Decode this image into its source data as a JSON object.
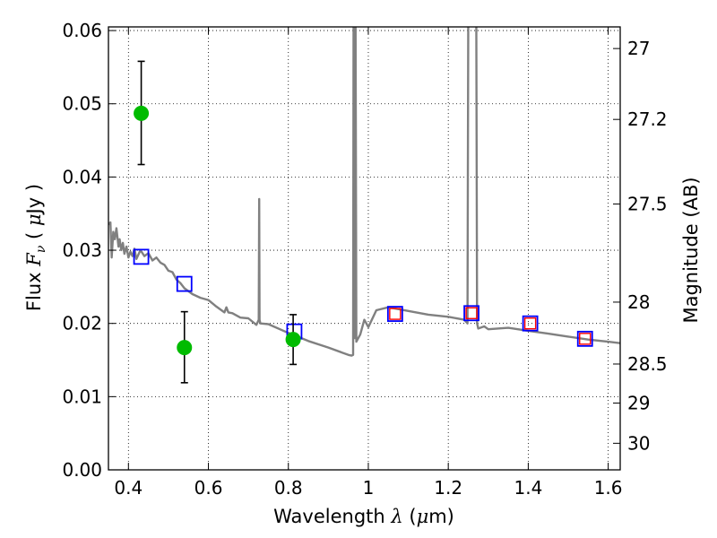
{
  "chart_data": {
    "type": "scatter",
    "xlabel": {
      "pre": "Wavelength  ",
      "sym": "λ",
      "post": " (",
      "mu": "μ",
      "unit": "m)"
    },
    "ylabel": {
      "pre": "Flux  ",
      "sym": "F",
      "sub": "ν",
      "open": "  ( ",
      "mu": "μ",
      "unit": "Jy )"
    },
    "y2label": "Magnitude (AB)",
    "xlim": [
      0.35,
      1.63
    ],
    "ylim": [
      0.0,
      0.0605
    ],
    "grid": true,
    "xticks": [
      {
        "v": 0.4,
        "label": "0.4"
      },
      {
        "v": 0.6,
        "label": "0.6"
      },
      {
        "v": 0.8,
        "label": "0.8"
      },
      {
        "v": 1.0,
        "label": "1"
      },
      {
        "v": 1.2,
        "label": "1.2"
      },
      {
        "v": 1.4,
        "label": "1.4"
      },
      {
        "v": 1.6,
        "label": "1.6"
      }
    ],
    "yticks": [
      {
        "v": 0.0,
        "label": "0.00"
      },
      {
        "v": 0.01,
        "label": "0.01"
      },
      {
        "v": 0.02,
        "label": "0.02"
      },
      {
        "v": 0.03,
        "label": "0.03"
      },
      {
        "v": 0.04,
        "label": "0.04"
      },
      {
        "v": 0.05,
        "label": "0.05"
      },
      {
        "v": 0.06,
        "label": "0.06"
      }
    ],
    "y2ticks": [
      {
        "mag": 27,
        "label": "27"
      },
      {
        "mag": 27.2,
        "label": "27.2"
      },
      {
        "mag": 27.5,
        "label": "27.5"
      },
      {
        "mag": 28,
        "label": "28"
      },
      {
        "mag": 28.5,
        "label": "28.5"
      },
      {
        "mag": 29,
        "label": "29"
      },
      {
        "mag": 30,
        "label": "30"
      }
    ],
    "series": [
      {
        "kind": "model_spectrum",
        "color": "#808080",
        "x": [
          0.35,
          0.355,
          0.358,
          0.362,
          0.366,
          0.37,
          0.375,
          0.378,
          0.382,
          0.386,
          0.39,
          0.395,
          0.4,
          0.405,
          0.41,
          0.415,
          0.42,
          0.43,
          0.44,
          0.45,
          0.46,
          0.47,
          0.48,
          0.49,
          0.5,
          0.51,
          0.52,
          0.53,
          0.54,
          0.56,
          0.58,
          0.6,
          0.62,
          0.64,
          0.645,
          0.65,
          0.66,
          0.68,
          0.7,
          0.72,
          0.726,
          0.727,
          0.728,
          0.729,
          0.73,
          0.75,
          0.8,
          0.85,
          0.9,
          0.95,
          0.958,
          0.962,
          0.963,
          0.9635,
          0.964,
          0.966,
          0.967,
          0.9675,
          0.968,
          0.97,
          0.98,
          0.99,
          1.0,
          1.02,
          1.05,
          1.1,
          1.15,
          1.2,
          1.24,
          1.248,
          1.25,
          1.27,
          1.272,
          1.275,
          1.29,
          1.3,
          1.35,
          1.4,
          1.45,
          1.5,
          1.55,
          1.6,
          1.63
        ],
        "y": [
          0.0335,
          0.0338,
          0.029,
          0.0325,
          0.0315,
          0.033,
          0.0305,
          0.0315,
          0.03,
          0.031,
          0.0295,
          0.0305,
          0.029,
          0.0298,
          0.0292,
          0.0302,
          0.0288,
          0.03,
          0.0292,
          0.0296,
          0.0286,
          0.029,
          0.0283,
          0.028,
          0.0272,
          0.027,
          0.026,
          0.0255,
          0.0248,
          0.024,
          0.0235,
          0.0232,
          0.0223,
          0.0215,
          0.0222,
          0.0215,
          0.0214,
          0.0208,
          0.0207,
          0.0198,
          0.0205,
          0.037,
          0.0205,
          0.0202,
          0.02,
          0.0199,
          0.0187,
          0.0176,
          0.0167,
          0.0157,
          0.0156,
          0.0157,
          0.063,
          0.061,
          0.063,
          0.018,
          0.063,
          0.061,
          0.063,
          0.0175,
          0.0185,
          0.0205,
          0.0195,
          0.0218,
          0.0222,
          0.0217,
          0.0212,
          0.0209,
          0.0205,
          0.02,
          0.063,
          0.063,
          0.02,
          0.0193,
          0.0196,
          0.0192,
          0.0194,
          0.019,
          0.0186,
          0.0182,
          0.0178,
          0.0175,
          0.0173
        ]
      },
      {
        "kind": "model_photometry",
        "marker": "square",
        "color": "#0000ff",
        "x": [
          0.432,
          0.54,
          0.815,
          1.067,
          1.258,
          1.405,
          1.542
        ],
        "y": [
          0.0291,
          0.0254,
          0.0189,
          0.0213,
          0.0214,
          0.02,
          0.0179
        ]
      },
      {
        "kind": "observed_photometry",
        "marker": "square",
        "color": "#ff0000",
        "x": [
          1.067,
          1.258,
          1.405,
          1.542
        ],
        "y": [
          0.0213,
          0.0214,
          0.02,
          0.0179
        ]
      },
      {
        "kind": "observed_detections",
        "marker": "circle",
        "color": "#00bb00",
        "x": [
          0.432,
          0.54,
          0.812
        ],
        "y": [
          0.0487,
          0.0167,
          0.0178
        ],
        "yerr_low": [
          0.0417,
          0.0119,
          0.0144
        ],
        "yerr_high": [
          0.0558,
          0.0216,
          0.0212
        ]
      }
    ]
  }
}
